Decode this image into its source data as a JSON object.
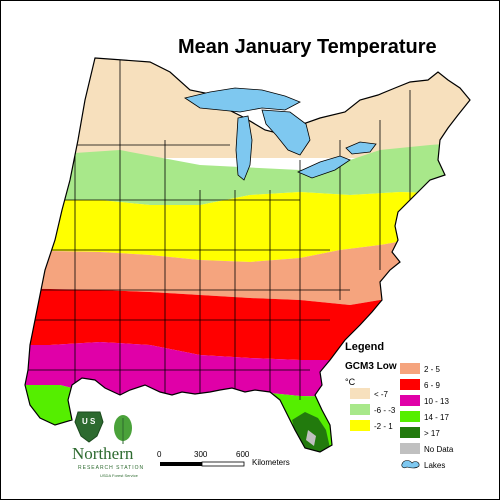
{
  "title": "Mean January Temperature",
  "legend": {
    "heading": "Legend",
    "model": "GCM3 Low",
    "unit": "°C",
    "classes": [
      {
        "label": "< -7",
        "color": "#f7e0bd",
        "icon": "class-swatch"
      },
      {
        "label": "-6 - -3",
        "color": "#a8e88a",
        "icon": "class-swatch"
      },
      {
        "label": "-2 - 1",
        "color": "#ffff00",
        "icon": "class-swatch"
      },
      {
        "label": "2 - 5",
        "color": "#f5a47e",
        "icon": "class-swatch"
      },
      {
        "label": "6 - 9",
        "color": "#ff0000",
        "icon": "class-swatch"
      },
      {
        "label": "10 - 13",
        "color": "#e000a8",
        "icon": "class-swatch"
      },
      {
        "label": "14 - 17",
        "color": "#55ee00",
        "icon": "class-swatch"
      },
      {
        "label": "> 17",
        "color": "#227a0d",
        "icon": "class-swatch"
      },
      {
        "label": "No Data",
        "color": "#c0c0c0",
        "icon": "class-swatch"
      },
      {
        "label": "Lakes",
        "color": "#7ec8f0",
        "icon": "lake-swatch"
      }
    ]
  },
  "scale_bar": {
    "ticks": [
      "0",
      "300",
      "600"
    ],
    "unit": "Kilometers"
  },
  "logo": {
    "name": "Northern",
    "subtitle": "RESEARCH STATION",
    "agency": "USDA Forest Service",
    "shield_text": "U S",
    "icons": [
      "forest-service-shield-icon",
      "oak-leaf-icon"
    ]
  }
}
